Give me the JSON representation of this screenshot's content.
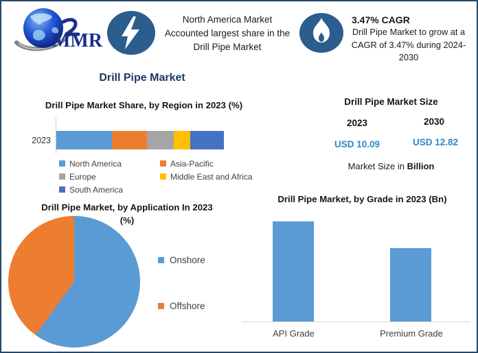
{
  "colors": {
    "accent_navy": "#1F3864",
    "icon_blue": "#2B5D8E",
    "value_blue": "#2B88C8",
    "bar_blue": "#5B9BD5",
    "orange": "#ED7D31",
    "gray": "#A5A5A5",
    "yellow": "#FFC000",
    "dark_blue": "#4472C4"
  },
  "header": {
    "logo_text": "MMR",
    "callout_share": {
      "icon": "lightning-icon",
      "lines": [
        "North America Market",
        "Accounted largest share in the",
        "Drill Pipe Market"
      ]
    },
    "callout_cagr": {
      "icon": "flame-icon",
      "title": "3.47% CAGR",
      "lines": [
        "Drill Pipe Market to grow at a",
        "CAGR of 3.47% during 2024-",
        "2030"
      ]
    }
  },
  "main_title": "Drill Pipe Market",
  "market_size_panel": {
    "title": "Drill Pipe Market Size",
    "col1": {
      "year": "2023",
      "value": "USD 10.09"
    },
    "col2": {
      "year": "2030",
      "value": "USD 12.82"
    },
    "note_prefix": "Market Size in ",
    "note_bold": "Billion"
  },
  "chart_data": [
    {
      "type": "bar",
      "variant": "horizontal-stacked",
      "title": "Drill Pipe Market Share, by Region in 2023 (%)",
      "categories": [
        "2023"
      ],
      "series": [
        {
          "name": "North America",
          "value": 33,
          "color": "#5B9BD5"
        },
        {
          "name": "Asia-Pacific",
          "value": 21,
          "color": "#ED7D31"
        },
        {
          "name": "Europe",
          "value": 16,
          "color": "#A5A5A5"
        },
        {
          "name": "Middle East and Africa",
          "value": 10,
          "color": "#FFC000"
        },
        {
          "name": "South America",
          "value": 20,
          "color": "#4472C4"
        }
      ],
      "unit": "%",
      "legend_position": "bottom",
      "note": "segment values estimated from widths; no data labels shown"
    },
    {
      "type": "pie",
      "title": "Drill Pipe Market, by Application In 2023",
      "title_line2": "(%)",
      "slices": [
        {
          "name": "Onshore",
          "value": 60,
          "color": "#5B9BD5"
        },
        {
          "name": "Offshore",
          "value": 40,
          "color": "#ED7D31"
        }
      ],
      "start_angle_deg": 0,
      "legend_position": "right",
      "note": "slice values estimated from angles; no data labels shown"
    },
    {
      "type": "bar",
      "title": "Drill Pipe Market, by Grade in 2023 (Bn)",
      "categories": [
        "API Grade",
        "Premium Grade"
      ],
      "values": [
        6.0,
        4.4
      ],
      "bar_color": "#5B9BD5",
      "ylim": [
        0,
        6.5
      ],
      "note": "bar values estimated from relative heights; no axis ticks or data labels shown"
    }
  ]
}
